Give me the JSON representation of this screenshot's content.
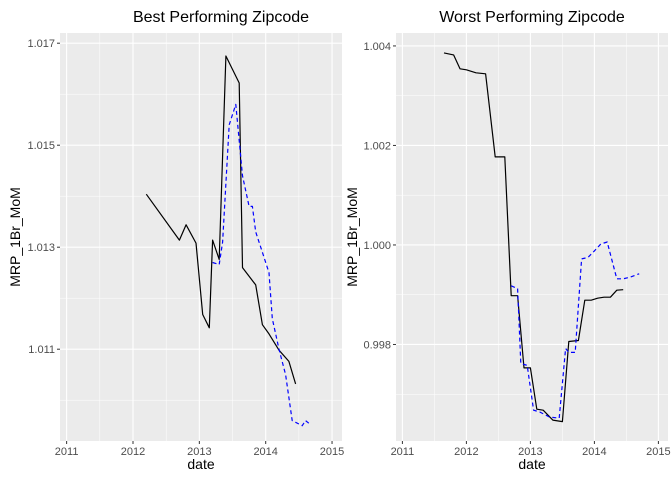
{
  "chart_data": [
    {
      "type": "line",
      "title": "Best Performing Zipcode",
      "xlabel": "date",
      "ylabel": "MRP_1Br_MoM",
      "xlim": [
        2010.9,
        2015.15
      ],
      "ylim": [
        1.0092,
        1.0172
      ],
      "xticks": [
        2011,
        2012,
        2013,
        2014,
        2015
      ],
      "xtick_labels": [
        "2011",
        "2012",
        "2013",
        "2014",
        "2015"
      ],
      "yticks": [
        1.011,
        1.013,
        1.015,
        1.017
      ],
      "ytick_labels": [
        "1.011",
        "1.013",
        "1.015",
        "1.017"
      ],
      "grid": true,
      "series": [
        {
          "style": "solid",
          "color": "#000000",
          "x": [
            2012.2,
            2012.7,
            2012.8,
            2012.95,
            2013.05,
            2013.15,
            2013.2,
            2013.3,
            2013.4,
            2013.6,
            2013.65,
            2013.85,
            2013.95,
            2014.05,
            2014.2,
            2014.35,
            2014.45
          ],
          "y": [
            1.01404,
            1.01314,
            1.01344,
            1.01308,
            1.01168,
            1.01142,
            1.01314,
            1.01276,
            1.01675,
            1.01622,
            1.0126,
            1.01226,
            1.01148,
            1.0113,
            1.01098,
            1.01076,
            1.01032
          ]
        },
        {
          "style": "dashed",
          "color": "#0000ff",
          "x": [
            2013.2,
            2013.3,
            2013.35,
            2013.45,
            2013.55,
            2013.65,
            2013.75,
            2013.8,
            2013.85,
            2013.95,
            2014.05,
            2014.1,
            2014.2,
            2014.3,
            2014.4,
            2014.55,
            2014.6,
            2014.65
          ],
          "y": [
            1.0127,
            1.01266,
            1.0131,
            1.0154,
            1.0158,
            1.0144,
            1.0138,
            1.0138,
            1.0133,
            1.0129,
            1.0125,
            1.0116,
            1.011,
            1.0105,
            1.0096,
            1.0095,
            1.0096,
            1.00955
          ]
        }
      ]
    },
    {
      "type": "line",
      "title": "Worst Performing Zipcode",
      "xlabel": "date",
      "ylabel": "MRP_1Br_MoM",
      "xlim": [
        2010.9,
        2015.15
      ],
      "ylim": [
        0.99606,
        1.00426
      ],
      "xticks": [
        2011,
        2012,
        2013,
        2014,
        2015
      ],
      "xtick_labels": [
        "2011",
        "2012",
        "2013",
        "2014",
        "2015"
      ],
      "yticks": [
        0.998,
        1.0,
        1.002,
        1.004
      ],
      "ytick_labels": [
        "0.998",
        "1.000",
        "1.002",
        "1.004"
      ],
      "grid": true,
      "series": [
        {
          "style": "solid",
          "color": "#000000",
          "x": [
            2011.65,
            2011.8,
            2011.9,
            2012.0,
            2012.15,
            2012.3,
            2012.45,
            2012.6,
            2012.7,
            2012.8,
            2012.9,
            2013.0,
            2013.1,
            2013.2,
            2013.35,
            2013.5,
            2013.6,
            2013.75,
            2013.85,
            2013.95,
            2014.05,
            2014.15,
            2014.25,
            2014.35,
            2014.45
          ],
          "y": [
            1.00386,
            1.00382,
            1.00354,
            1.00352,
            1.00346,
            1.00344,
            1.00177,
            1.00177,
            0.99898,
            0.99898,
            0.99753,
            0.99753,
            0.9967,
            0.99668,
            0.99648,
            0.99645,
            0.99806,
            0.99808,
            0.99889,
            0.99889,
            0.99893,
            0.99895,
            0.99895,
            0.99909,
            0.9991
          ]
        },
        {
          "style": "dashed",
          "color": "#0000ff",
          "x": [
            2012.7,
            2012.8,
            2012.85,
            2012.95,
            2013.05,
            2013.15,
            2013.3,
            2013.45,
            2013.55,
            2013.6,
            2013.7,
            2013.8,
            2013.9,
            2014.0,
            2014.1,
            2014.2,
            2014.35,
            2014.45,
            2014.55,
            2014.7
          ],
          "y": [
            0.99918,
            0.99912,
            0.99762,
            0.99758,
            0.99668,
            0.99664,
            0.99654,
            0.99652,
            0.99792,
            0.99784,
            0.99784,
            0.99972,
            0.99975,
            0.99988,
            1.00002,
            1.00006,
            0.99932,
            0.99932,
            0.99935,
            0.99942
          ]
        }
      ]
    }
  ]
}
